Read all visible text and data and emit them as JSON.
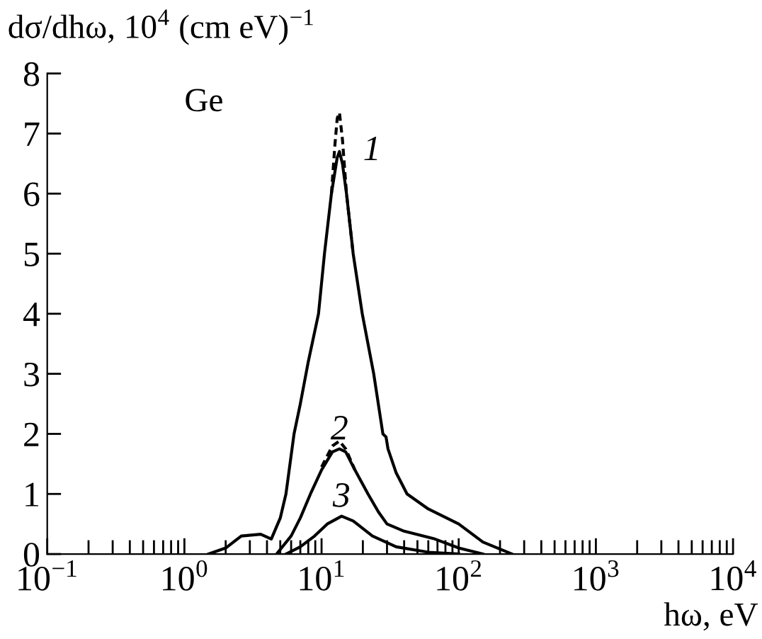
{
  "chart_data": {
    "type": "line",
    "ylabel": "dσ/dhω, 10$^{4}$ (cm eV)$^{−1}$",
    "xlabel": "hω, eV",
    "log": "x",
    "xlim": [
      0.1,
      10000
    ],
    "xticks": [
      {
        "value": 0.1,
        "label": "10$^{−1}$"
      },
      {
        "value": 1,
        "label": "10$^{0}$"
      },
      {
        "value": 10,
        "label": "10$^{1}$"
      },
      {
        "value": 100,
        "label": "10$^{2}$"
      },
      {
        "value": 1000,
        "label": "10$^{3}$"
      },
      {
        "value": 10000,
        "label": "10$^{4}$"
      }
    ],
    "ylim": [
      0,
      8
    ],
    "yticks": [
      0,
      1,
      2,
      3,
      4,
      5,
      6,
      7,
      8
    ],
    "grid": false,
    "legend": false,
    "annotations": [
      "Ge"
    ],
    "series": [
      {
        "name": "1",
        "color": "#000000",
        "line_style": "solid",
        "x": [
          1.5,
          2.0,
          2.6,
          3.6,
          4.3,
          5.0,
          5.5,
          6.3,
          7.0,
          8.0,
          9.5,
          10.5,
          11.8,
          13.0,
          13.5,
          14.2,
          15.2,
          17.0,
          19.8,
          24.0,
          28.0,
          29.5,
          30.5,
          35.0,
          42.0,
          60.0,
          100.0,
          150.0,
          245.0
        ],
        "values": [
          0.0,
          0.1,
          0.3,
          0.33,
          0.25,
          0.6,
          1.0,
          2.0,
          2.5,
          3.2,
          4.0,
          5.0,
          6.0,
          6.6,
          6.7,
          6.5,
          6.0,
          5.0,
          4.0,
          3.0,
          2.0,
          1.95,
          1.75,
          1.35,
          1.0,
          0.75,
          0.5,
          0.2,
          0.0
        ]
      },
      {
        "color": "#000000",
        "line_style": "dashed",
        "x": [
          11.8,
          12.5,
          13.0,
          13.5,
          14.2,
          15.2,
          17.0
        ],
        "values": [
          6.0,
          6.8,
          7.25,
          7.35,
          6.9,
          6.0,
          5.0
        ]
      },
      {
        "name": "2",
        "color": "#000000",
        "line_style": "solid",
        "x": [
          4.7,
          6.0,
          7.0,
          8.3,
          10.0,
          12.0,
          13.5,
          15.0,
          17.5,
          21.8,
          26.0,
          30.0,
          40.0,
          67.0,
          100.0,
          150.0
        ],
        "values": [
          0.0,
          0.3,
          0.6,
          1.0,
          1.4,
          1.7,
          1.75,
          1.7,
          1.4,
          1.0,
          0.7,
          0.5,
          0.38,
          0.25,
          0.1,
          0.0
        ]
      },
      {
        "color": "#000000",
        "line_style": "dashed",
        "x": [
          10.0,
          12.0,
          13.5,
          15.0,
          17.5
        ],
        "values": [
          1.45,
          1.8,
          1.88,
          1.75,
          1.4
        ]
      },
      {
        "name": "3",
        "color": "#000000",
        "line_style": "solid",
        "x": [
          5.5,
          7.0,
          8.9,
          11.0,
          14.0,
          17.0,
          23.5,
          35.0,
          60.0,
          100.0
        ],
        "values": [
          0.0,
          0.12,
          0.3,
          0.5,
          0.63,
          0.55,
          0.3,
          0.12,
          0.03,
          0.0
        ]
      }
    ]
  }
}
